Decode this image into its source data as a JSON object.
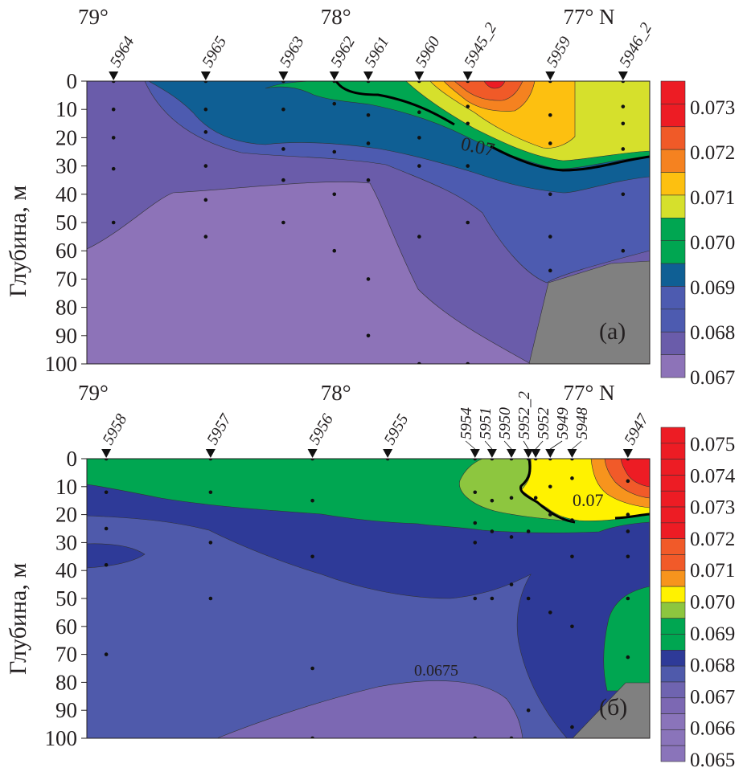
{
  "chart_data": [
    {
      "type": "heatmap",
      "subtype": "contour-section",
      "panel_label": "(а)",
      "ylabel": "Глубина, м",
      "ylim": [
        100,
        0
      ],
      "yticks": [
        0,
        10,
        20,
        30,
        40,
        50,
        60,
        70,
        80,
        90,
        100
      ],
      "xlim_lat": [
        79.03,
        76.71
      ],
      "xticks": [
        {
          "value": 79,
          "label": "79°"
        },
        {
          "value": 78,
          "label": "78°"
        },
        {
          "value": 77,
          "label": "77° N"
        }
      ],
      "contour_label": "0.07",
      "colorbar": {
        "labels": [
          "0.073",
          "0.072",
          "0.071",
          "0.070",
          "0.069",
          "0.068",
          "0.067"
        ],
        "values": [
          0.073,
          0.072,
          0.071,
          0.07,
          0.069,
          0.068,
          0.067
        ],
        "band_colors": [
          "#ed1c24",
          "#ed1c24",
          "#f05a28",
          "#f58220",
          "#fdc010",
          "#d6e02c",
          "#00a651",
          "#00a651",
          "#0f5f94",
          "#4d5bb0",
          "#4d5bb0",
          "#6a5caa",
          "#8d73b8"
        ]
      },
      "stations": [
        {
          "id": "5964",
          "lat": 78.92,
          "depths": [
            0,
            10,
            20,
            31,
            50
          ]
        },
        {
          "id": "5965",
          "lat": 78.54,
          "depths": [
            0,
            10,
            18,
            30,
            42,
            55
          ]
        },
        {
          "id": "5963",
          "lat": 78.22,
          "depths": [
            0,
            10,
            24,
            35,
            50
          ]
        },
        {
          "id": "5962",
          "lat": 78.01,
          "depths": [
            0,
            8,
            25,
            40,
            60
          ]
        },
        {
          "id": "5961",
          "lat": 77.87,
          "depths": [
            0,
            12,
            22,
            35,
            70,
            90
          ]
        },
        {
          "id": "5960",
          "lat": 77.66,
          "depths": [
            0,
            11,
            20,
            30,
            55,
            100
          ]
        },
        {
          "id": "5945_2",
          "lat": 77.46,
          "depths": [
            0,
            9,
            15,
            30,
            50,
            100
          ]
        },
        {
          "id": "5959",
          "lat": 77.12,
          "depths": [
            0,
            12,
            22,
            40,
            55,
            67
          ]
        },
        {
          "id": "5946_2",
          "lat": 76.82,
          "depths": [
            0,
            9,
            15,
            24,
            40,
            60
          ]
        }
      ]
    },
    {
      "type": "heatmap",
      "subtype": "contour-section",
      "panel_label": "(б)",
      "ylabel": "Глубина, м",
      "ylim": [
        100,
        0
      ],
      "yticks": [
        0,
        10,
        20,
        30,
        40,
        50,
        60,
        70,
        80,
        90,
        100
      ],
      "xlim_lat": [
        79.03,
        76.71
      ],
      "xticks": [
        {
          "value": 79,
          "label": "79°"
        },
        {
          "value": 78,
          "label": "78°"
        },
        {
          "value": 77,
          "label": "77° N"
        }
      ],
      "contour_label": "0.07",
      "contour_label_2": "0.0675",
      "colorbar": {
        "labels": [
          "0.075",
          "0.074",
          "0.073",
          "0.072",
          "0.071",
          "0.070",
          "0.069",
          "0.068",
          "0.067",
          "0.066",
          "0.065"
        ],
        "values": [
          0.075,
          0.074,
          0.073,
          0.072,
          0.071,
          0.07,
          0.069,
          0.068,
          0.067,
          0.066,
          0.065
        ],
        "band_colors": [
          "#ed1c24",
          "#ed1c24",
          "#ed1c24",
          "#ed1c24",
          "#ed1c24",
          "#ed1c24",
          "#ed1c24",
          "#f15a29",
          "#f15a29",
          "#f7941d",
          "#fff200",
          "#8dc63f",
          "#00a651",
          "#00a651",
          "#2e3a98",
          "#4f5aab",
          "#6f64b0",
          "#7c68b3",
          "#8a74ba",
          "#8a74ba",
          "#8a74ba"
        ]
      },
      "stations": [
        {
          "id": "5958",
          "lat": 78.95,
          "depths": [
            0,
            12,
            25,
            38,
            70
          ]
        },
        {
          "id": "5957",
          "lat": 78.52,
          "depths": [
            0,
            12,
            30,
            50
          ]
        },
        {
          "id": "5956",
          "lat": 78.1,
          "depths": [
            0,
            15,
            35,
            75,
            100
          ]
        },
        {
          "id": "5955",
          "lat": 77.79,
          "depths": [
            0
          ]
        },
        {
          "id": "5954",
          "lat": 77.43,
          "depths": [
            0,
            12,
            23,
            30,
            50,
            100
          ]
        },
        {
          "id": "5951",
          "lat": 77.36,
          "depths": [
            0,
            15,
            26,
            50
          ]
        },
        {
          "id": "5950",
          "lat": 77.28,
          "depths": [
            0,
            14,
            28,
            45,
            100
          ]
        },
        {
          "id": "5952_2",
          "lat": 77.21,
          "depths": [
            0,
            26,
            50,
            90
          ]
        },
        {
          "id": "5952",
          "lat": 77.18,
          "depths": [
            0,
            14
          ]
        },
        {
          "id": "5949",
          "lat": 77.12,
          "depths": [
            0,
            10,
            20,
            55
          ]
        },
        {
          "id": "5948",
          "lat": 77.03,
          "depths": [
            0,
            7,
            22,
            35,
            60,
            96
          ]
        },
        {
          "id": "5947",
          "lat": 76.8,
          "depths": [
            0,
            8,
            20,
            26,
            35,
            50,
            71
          ]
        }
      ]
    }
  ]
}
